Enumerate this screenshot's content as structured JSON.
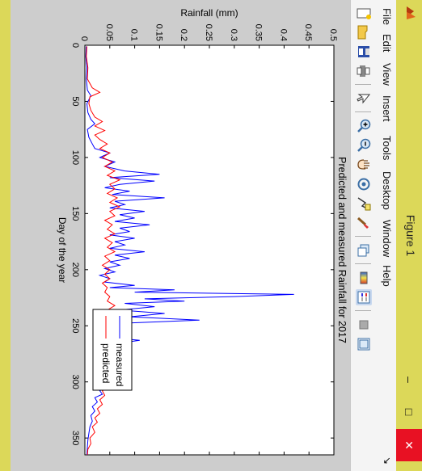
{
  "window": {
    "title": "Figure 1",
    "minimize_symbol": "–",
    "maximize_symbol": "□",
    "close_symbol": "✕"
  },
  "menu": {
    "items": [
      "File",
      "Edit",
      "View",
      "Insert",
      "Tools",
      "Desktop",
      "Window",
      "Help"
    ],
    "corner_symbol": "↘"
  },
  "toolbar": {
    "buttons": [
      "new-figure-icon",
      "open-file-icon",
      "save-icon",
      "print-icon",
      "edit-plot-arrow-icon",
      "zoom-in-icon",
      "zoom-out-icon",
      "pan-hand-icon",
      "rotate-3d-icon",
      "data-cursor-icon",
      "brush-icon",
      "link-plot-icon",
      "colorbar-icon",
      "legend-icon",
      "hide-plot-tools-icon",
      "show-plot-tools-icon"
    ]
  },
  "colors": {
    "measured": "#0000ff",
    "predicted": "#ff0000",
    "titlebar": "#dcd859",
    "figure_bg": "#cdcdcd"
  },
  "chart_data": {
    "type": "line",
    "title": "Predicted and measured Rainfall for 2017",
    "xlabel": "Day of the year",
    "ylabel": "Rainfall (mm)",
    "xlim": [
      0,
      365
    ],
    "ylim": [
      0,
      0.5
    ],
    "xticks": [
      0,
      50,
      100,
      150,
      200,
      250,
      300,
      350
    ],
    "yticks": [
      0,
      0.05,
      0.1,
      0.15,
      0.2,
      0.25,
      0.3,
      0.35,
      0.4,
      0.45,
      0.5
    ],
    "ytick_labels": [
      "0",
      "0.05",
      "0.1",
      "0.15",
      "0.2",
      "0.25",
      "0.3",
      "0.35",
      "0.4",
      "0.45",
      "0.5"
    ],
    "legend": {
      "location": "bottom-right",
      "entries": [
        "measured",
        "predicted"
      ]
    },
    "series": [
      {
        "name": "measured",
        "color": "#0000ff",
        "points": [
          [
            1,
            0.003
          ],
          [
            10,
            0.002
          ],
          [
            20,
            0.004
          ],
          [
            30,
            0.003
          ],
          [
            40,
            0.005
          ],
          [
            45,
            0.012
          ],
          [
            52,
            0.004
          ],
          [
            60,
            0.006
          ],
          [
            66,
            0.012
          ],
          [
            70,
            0.02
          ],
          [
            75,
            0.005
          ],
          [
            82,
            0.008
          ],
          [
            88,
            0.015
          ],
          [
            92,
            0.02
          ],
          [
            96,
            0.05
          ],
          [
            100,
            0.03
          ],
          [
            104,
            0.06
          ],
          [
            108,
            0.04
          ],
          [
            112,
            0.08
          ],
          [
            115,
            0.15
          ],
          [
            118,
            0.05
          ],
          [
            121,
            0.14
          ],
          [
            124,
            0.07
          ],
          [
            127,
            0.04
          ],
          [
            130,
            0.09
          ],
          [
            133,
            0.055
          ],
          [
            136,
            0.16
          ],
          [
            139,
            0.06
          ],
          [
            142,
            0.08
          ],
          [
            145,
            0.05
          ],
          [
            148,
            0.12
          ],
          [
            151,
            0.07
          ],
          [
            154,
            0.1
          ],
          [
            157,
            0.06
          ],
          [
            160,
            0.13
          ],
          [
            163,
            0.07
          ],
          [
            166,
            0.09
          ],
          [
            169,
            0.05
          ],
          [
            172,
            0.1
          ],
          [
            175,
            0.06
          ],
          [
            178,
            0.08
          ],
          [
            181,
            0.05
          ],
          [
            184,
            0.12
          ],
          [
            187,
            0.06
          ],
          [
            190,
            0.09
          ],
          [
            193,
            0.05
          ],
          [
            196,
            0.07
          ],
          [
            199,
            0.04
          ],
          [
            202,
            0.06
          ],
          [
            205,
            0.03
          ],
          [
            208,
            0.05
          ],
          [
            211,
            0.04
          ],
          [
            214,
            0.1
          ],
          [
            216,
            0.05
          ],
          [
            218,
            0.18
          ],
          [
            220,
            0.1
          ],
          [
            222,
            0.42
          ],
          [
            224,
            0.3
          ],
          [
            226,
            0.12
          ],
          [
            228,
            0.2
          ],
          [
            230,
            0.08
          ],
          [
            233,
            0.14
          ],
          [
            236,
            0.07
          ],
          [
            239,
            0.16
          ],
          [
            242,
            0.09
          ],
          [
            245,
            0.23
          ],
          [
            248,
            0.06
          ],
          [
            251,
            0.09
          ],
          [
            254,
            0.05
          ],
          [
            257,
            0.08
          ],
          [
            260,
            0.045
          ],
          [
            263,
            0.11
          ],
          [
            266,
            0.06
          ],
          [
            269,
            0.08
          ],
          [
            272,
            0.05
          ],
          [
            275,
            0.07
          ],
          [
            278,
            0.05
          ],
          [
            281,
            0.06
          ],
          [
            284,
            0.04
          ],
          [
            287,
            0.07
          ],
          [
            290,
            0.05
          ],
          [
            293,
            0.09
          ],
          [
            296,
            0.04
          ],
          [
            299,
            0.06
          ],
          [
            302,
            0.035
          ],
          [
            305,
            0.04
          ],
          [
            308,
            0.03
          ],
          [
            311,
            0.035
          ],
          [
            314,
            0.02
          ],
          [
            318,
            0.025
          ],
          [
            322,
            0.015
          ],
          [
            326,
            0.02
          ],
          [
            330,
            0.012
          ],
          [
            335,
            0.015
          ],
          [
            340,
            0.01
          ],
          [
            346,
            0.008
          ],
          [
            352,
            0.006
          ],
          [
            358,
            0.005
          ],
          [
            365,
            0.004
          ]
        ]
      },
      {
        "name": "predicted",
        "color": "#ff0000",
        "points": [
          [
            1,
            0.004
          ],
          [
            10,
            0.003
          ],
          [
            20,
            0.006
          ],
          [
            30,
            0.005
          ],
          [
            38,
            0.015
          ],
          [
            42,
            0.03
          ],
          [
            46,
            0.01
          ],
          [
            52,
            0.008
          ],
          [
            58,
            0.012
          ],
          [
            64,
            0.02
          ],
          [
            68,
            0.035
          ],
          [
            72,
            0.02
          ],
          [
            76,
            0.04
          ],
          [
            80,
            0.02
          ],
          [
            84,
            0.03
          ],
          [
            88,
            0.045
          ],
          [
            92,
            0.03
          ],
          [
            96,
            0.05
          ],
          [
            100,
            0.035
          ],
          [
            104,
            0.055
          ],
          [
            108,
            0.04
          ],
          [
            112,
            0.06
          ],
          [
            116,
            0.045
          ],
          [
            120,
            0.07
          ],
          [
            124,
            0.05
          ],
          [
            128,
            0.06
          ],
          [
            132,
            0.045
          ],
          [
            136,
            0.065
          ],
          [
            140,
            0.05
          ],
          [
            144,
            0.07
          ],
          [
            148,
            0.05
          ],
          [
            152,
            0.06
          ],
          [
            156,
            0.04
          ],
          [
            160,
            0.055
          ],
          [
            164,
            0.045
          ],
          [
            168,
            0.06
          ],
          [
            172,
            0.04
          ],
          [
            176,
            0.055
          ],
          [
            180,
            0.045
          ],
          [
            184,
            0.06
          ],
          [
            188,
            0.04
          ],
          [
            192,
            0.05
          ],
          [
            196,
            0.035
          ],
          [
            200,
            0.05
          ],
          [
            204,
            0.04
          ],
          [
            208,
            0.05
          ],
          [
            212,
            0.035
          ],
          [
            216,
            0.045
          ],
          [
            220,
            0.04
          ],
          [
            224,
            0.05
          ],
          [
            228,
            0.045
          ],
          [
            232,
            0.06
          ],
          [
            236,
            0.045
          ],
          [
            240,
            0.055
          ],
          [
            244,
            0.04
          ],
          [
            248,
            0.05
          ],
          [
            252,
            0.045
          ],
          [
            256,
            0.055
          ],
          [
            260,
            0.04
          ],
          [
            264,
            0.06
          ],
          [
            268,
            0.045
          ],
          [
            272,
            0.05
          ],
          [
            276,
            0.04
          ],
          [
            280,
            0.055
          ],
          [
            284,
            0.04
          ],
          [
            288,
            0.05
          ],
          [
            292,
            0.045
          ],
          [
            296,
            0.06
          ],
          [
            300,
            0.04
          ],
          [
            304,
            0.05
          ],
          [
            308,
            0.035
          ],
          [
            312,
            0.04
          ],
          [
            316,
            0.03
          ],
          [
            320,
            0.035
          ],
          [
            324,
            0.025
          ],
          [
            328,
            0.03
          ],
          [
            332,
            0.02
          ],
          [
            336,
            0.025
          ],
          [
            340,
            0.015
          ],
          [
            345,
            0.02
          ],
          [
            350,
            0.01
          ],
          [
            355,
            0.012
          ],
          [
            360,
            0.006
          ],
          [
            365,
            0.005
          ]
        ]
      }
    ]
  }
}
